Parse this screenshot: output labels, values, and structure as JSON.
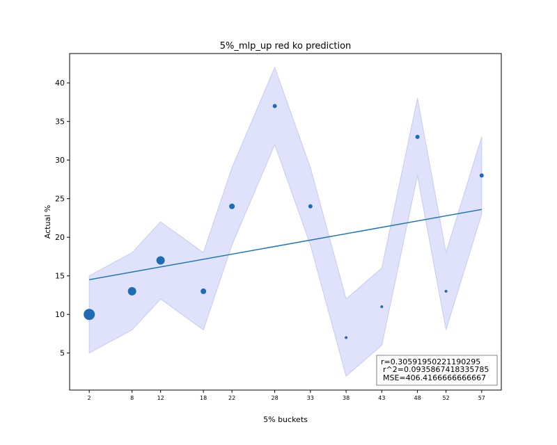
{
  "chart_data": {
    "type": "scatter",
    "title": "5%_mlp_up red ko prediction",
    "xlabel": "5% buckets",
    "ylabel": "Actual %",
    "x": [
      2,
      8,
      12,
      18,
      22,
      28,
      33,
      38,
      43,
      48,
      52,
      57
    ],
    "xtick_labels": [
      "2",
      "8",
      "12",
      "18",
      "22",
      "28",
      "33",
      "38",
      "43",
      "48",
      "52",
      "57"
    ],
    "xlim": [
      -0.75,
      59.75
    ],
    "ylim": [
      0.2,
      43.8
    ],
    "yticks": [
      5,
      10,
      15,
      20,
      25,
      30,
      35,
      40
    ],
    "ytick_labels": [
      "5",
      "10",
      "15",
      "20",
      "25",
      "30",
      "35",
      "40"
    ],
    "series": [
      {
        "type": "scatter",
        "x": [
          2,
          8,
          12,
          18,
          22,
          28,
          33,
          38,
          43,
          48,
          52,
          57
        ],
        "y": [
          10,
          13,
          17,
          13,
          24,
          37,
          24,
          7,
          11,
          33,
          13,
          28
        ],
        "marker_size_rank": [
          8,
          6,
          6,
          4,
          4,
          3,
          3,
          2,
          2,
          3,
          2,
          3
        ],
        "color": "#1f6cb4"
      }
    ],
    "band": {
      "x": [
        2,
        8,
        12,
        18,
        22,
        28,
        33,
        38,
        43,
        48,
        52,
        57
      ],
      "lower": [
        5,
        8,
        12,
        8,
        19,
        32,
        19,
        2,
        6,
        28,
        8,
        23
      ],
      "upper": [
        15,
        18,
        22,
        18,
        29,
        42,
        29,
        12,
        16,
        38,
        18,
        33
      ],
      "fill": "#e0e2fb",
      "stroke": "#c6c9f4"
    },
    "fit_line": {
      "x": [
        2,
        57
      ],
      "y": [
        14.5,
        23.6
      ],
      "color": "#1f77b4"
    },
    "grid": false,
    "annotation": {
      "lines": [
        "r=0.30591950221190295",
        "r^2=0.0935867418335785",
        "MSE=406.4166666666667"
      ],
      "placement": "bottom-right"
    }
  }
}
